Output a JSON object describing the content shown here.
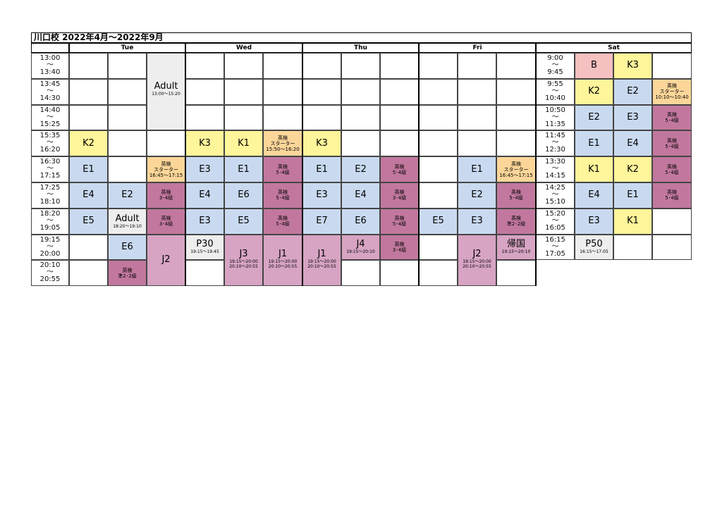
{
  "title": "川口校  2022年4月～2022年9月",
  "days": [
    "Tue",
    "Wed",
    "Thu",
    "Fri",
    "Sat"
  ],
  "times_weekday": [
    [
      "13:00",
      "～",
      "13:40"
    ],
    [
      "13:45",
      "～",
      "14:30"
    ],
    [
      "14:40",
      "～",
      "15:25"
    ],
    [
      "15:35",
      "～",
      "16:20"
    ],
    [
      "16:30",
      "～",
      "17:15"
    ],
    [
      "17:25",
      "～",
      "18:10"
    ],
    [
      "18:20",
      "～",
      "19:05"
    ],
    [
      "19:15",
      "～",
      "20:00"
    ],
    [
      "20:10",
      "～",
      "20:55"
    ]
  ],
  "times_sat": [
    [
      "9:00",
      "～",
      "9:45"
    ],
    [
      "9:55",
      "～",
      "10:40"
    ],
    [
      "10:50",
      "～",
      "11:35"
    ],
    [
      "11:45",
      "～",
      "12:30"
    ],
    [
      "13:30",
      "～",
      "14:15"
    ],
    [
      "14:25",
      "～",
      "15:10"
    ],
    [
      "15:20",
      "～",
      "16:05"
    ],
    [
      "16:15",
      "～",
      "17:05"
    ]
  ],
  "colors": {
    "yellow": "#fff59a",
    "blue": "#c9daf0",
    "gray": "#eeeeee",
    "orange": "#fcd699",
    "purple": "#c2789e",
    "pink": "#d7a4c3",
    "red": "#f4c0c0"
  },
  "classes": [
    {
      "col": 0,
      "row": 3,
      "span": 1,
      "label": "K2",
      "color": "yellow"
    },
    {
      "col": 0,
      "row": 4,
      "span": 1,
      "label": "E1",
      "color": "blue"
    },
    {
      "col": 0,
      "row": 5,
      "span": 1,
      "label": "E4",
      "color": "blue"
    },
    {
      "col": 0,
      "row": 6,
      "span": 1,
      "label": "E5",
      "color": "blue"
    },
    {
      "col": 1,
      "row": 5,
      "span": 1,
      "label": "E2",
      "color": "blue"
    },
    {
      "col": 1,
      "row": 6,
      "span": 1,
      "label": "Adult",
      "sub": "18:20～19:10",
      "color": "gray"
    },
    {
      "col": 1,
      "row": 7,
      "span": 1,
      "label": "E6",
      "color": "blue"
    },
    {
      "col": 1,
      "row": 8,
      "span": 1,
      "small": [
        "英検",
        "準2･2級"
      ],
      "color": "purple"
    },
    {
      "col": 2,
      "row": 0,
      "span": 3,
      "label": "Adult",
      "sub": "13:00～15:20",
      "color": "gray"
    },
    {
      "col": 2,
      "row": 4,
      "span": 1,
      "small": [
        "英検",
        "スターター",
        "16:45～17:15"
      ],
      "color": "orange"
    },
    {
      "col": 2,
      "row": 5,
      "span": 1,
      "small": [
        "英検",
        "3･4級"
      ],
      "color": "purple"
    },
    {
      "col": 2,
      "row": 6,
      "span": 1,
      "small": [
        "英検",
        "3･4級"
      ],
      "color": "purple"
    },
    {
      "col": 2,
      "row": 7,
      "span": 2,
      "label": "J2",
      "color": "pink"
    },
    {
      "col": 3,
      "row": 3,
      "span": 1,
      "label": "K3",
      "color": "yellow"
    },
    {
      "col": 3,
      "row": 4,
      "span": 1,
      "label": "E3",
      "color": "blue"
    },
    {
      "col": 3,
      "row": 5,
      "span": 1,
      "label": "E4",
      "color": "blue"
    },
    {
      "col": 3,
      "row": 6,
      "span": 1,
      "label": "E3",
      "color": "blue"
    },
    {
      "col": 3,
      "row": 7,
      "span": 1,
      "label": "P30",
      "sub": "19:15～19:45",
      "color": "gray"
    },
    {
      "col": 4,
      "row": 3,
      "span": 1,
      "label": "K1",
      "color": "yellow"
    },
    {
      "col": 4,
      "row": 4,
      "span": 1,
      "label": "E1",
      "color": "blue"
    },
    {
      "col": 4,
      "row": 5,
      "span": 1,
      "label": "E6",
      "color": "blue"
    },
    {
      "col": 4,
      "row": 6,
      "span": 1,
      "label": "E5",
      "color": "blue"
    },
    {
      "col": 4,
      "row": 7,
      "span": 2,
      "label": "J3",
      "sub": "19:15～20:00",
      "sub2": "20:10～20:55",
      "color": "pink"
    },
    {
      "col": 5,
      "row": 3,
      "span": 1,
      "small": [
        "英検",
        "スターター",
        "15:50～16:20"
      ],
      "color": "orange"
    },
    {
      "col": 5,
      "row": 4,
      "span": 1,
      "small": [
        "英検",
        "5･4級"
      ],
      "color": "purple"
    },
    {
      "col": 5,
      "row": 5,
      "span": 1,
      "small": [
        "英検",
        "5･4級"
      ],
      "color": "purple"
    },
    {
      "col": 5,
      "row": 6,
      "span": 1,
      "small": [
        "英検",
        "5･4級"
      ],
      "color": "purple"
    },
    {
      "col": 5,
      "row": 7,
      "span": 2,
      "label": "J1",
      "sub": "19:15～20:00",
      "sub2": "20:10～20:55",
      "color": "pink"
    },
    {
      "col": 6,
      "row": 3,
      "span": 1,
      "label": "K3",
      "color": "yellow"
    },
    {
      "col": 6,
      "row": 4,
      "span": 1,
      "label": "E1",
      "color": "blue"
    },
    {
      "col": 6,
      "row": 5,
      "span": 1,
      "label": "E3",
      "color": "blue"
    },
    {
      "col": 6,
      "row": 6,
      "span": 1,
      "label": "E7",
      "color": "blue"
    },
    {
      "col": 6,
      "row": 7,
      "span": 2,
      "label": "J1",
      "sub": "19:15～20:00",
      "sub2": "20:10～20:55",
      "color": "pink"
    },
    {
      "col": 7,
      "row": 4,
      "span": 1,
      "label": "E2",
      "color": "blue"
    },
    {
      "col": 7,
      "row": 5,
      "span": 1,
      "label": "E4",
      "color": "blue"
    },
    {
      "col": 7,
      "row": 6,
      "span": 1,
      "label": "E6",
      "color": "blue"
    },
    {
      "col": 7,
      "row": 7,
      "span": 1,
      "label": "J4",
      "sub": "19:15～20:10",
      "color": "pink"
    },
    {
      "col": 8,
      "row": 4,
      "span": 1,
      "small": [
        "英検",
        "5･4級"
      ],
      "color": "purple"
    },
    {
      "col": 8,
      "row": 5,
      "span": 1,
      "small": [
        "英検",
        "3･4級"
      ],
      "color": "purple"
    },
    {
      "col": 8,
      "row": 6,
      "span": 1,
      "small": [
        "英検",
        "5･4級"
      ],
      "color": "purple"
    },
    {
      "col": 8,
      "row": 7,
      "span": 1,
      "small": [
        "英検",
        "3･4級"
      ],
      "color": "purple"
    },
    {
      "col": 9,
      "row": 6,
      "span": 1,
      "label": "E5",
      "color": "blue"
    },
    {
      "col": 10,
      "row": 4,
      "span": 1,
      "label": "E1",
      "color": "blue"
    },
    {
      "col": 10,
      "row": 5,
      "span": 1,
      "label": "E2",
      "color": "blue"
    },
    {
      "col": 10,
      "row": 6,
      "span": 1,
      "label": "E3",
      "color": "blue"
    },
    {
      "col": 10,
      "row": 7,
      "span": 2,
      "label": "J2",
      "sub": "19:15～20:00",
      "sub2": "20:10～20:55",
      "color": "pink"
    },
    {
      "col": 11,
      "row": 4,
      "span": 1,
      "small": [
        "英検",
        "スターター",
        "16:45～17:15"
      ],
      "color": "orange"
    },
    {
      "col": 11,
      "row": 5,
      "span": 1,
      "small": [
        "英検",
        "5･4級"
      ],
      "color": "purple"
    },
    {
      "col": 11,
      "row": 6,
      "span": 1,
      "small": [
        "英検",
        "準2･2級"
      ],
      "color": "purple"
    },
    {
      "col": 11,
      "row": 7,
      "span": 1,
      "label": "帰国",
      "sub": "19:15～20:10",
      "color": "pink"
    }
  ],
  "sat_classes": [
    {
      "col": 0,
      "row": 0,
      "label": "B",
      "color": "red"
    },
    {
      "col": 1,
      "row": 0,
      "label": "K3",
      "color": "yellow"
    },
    {
      "col": 0,
      "row": 1,
      "label": "K2",
      "color": "yellow"
    },
    {
      "col": 1,
      "row": 1,
      "label": "E2",
      "color": "blue"
    },
    {
      "col": 2,
      "row": 1,
      "small": [
        "英検",
        "スターター",
        "10:10～10:40"
      ],
      "color": "orange"
    },
    {
      "col": 0,
      "row": 2,
      "label": "E2",
      "color": "blue"
    },
    {
      "col": 1,
      "row": 2,
      "label": "E3",
      "color": "blue"
    },
    {
      "col": 2,
      "row": 2,
      "small": [
        "英検",
        "5･4級"
      ],
      "color": "purple"
    },
    {
      "col": 0,
      "row": 3,
      "label": "E1",
      "color": "blue"
    },
    {
      "col": 1,
      "row": 3,
      "label": "E4",
      "color": "blue"
    },
    {
      "col": 2,
      "row": 3,
      "small": [
        "英検",
        "5･4級"
      ],
      "color": "purple"
    },
    {
      "col": 0,
      "row": 4,
      "label": "K1",
      "color": "yellow"
    },
    {
      "col": 1,
      "row": 4,
      "label": "K2",
      "color": "yellow"
    },
    {
      "col": 2,
      "row": 4,
      "small": [
        "英検",
        "5･4級"
      ],
      "color": "purple"
    },
    {
      "col": 0,
      "row": 5,
      "label": "E4",
      "color": "blue"
    },
    {
      "col": 1,
      "row": 5,
      "label": "E1",
      "color": "blue"
    },
    {
      "col": 2,
      "row": 5,
      "small": [
        "英検",
        "5･4級"
      ],
      "color": "purple"
    },
    {
      "col": 0,
      "row": 6,
      "label": "E3",
      "color": "blue"
    },
    {
      "col": 1,
      "row": 6,
      "label": "K1",
      "color": "yellow"
    },
    {
      "col": 0,
      "row": 7,
      "label": "P50",
      "sub": "16:15～17:05",
      "color": "gray"
    }
  ]
}
